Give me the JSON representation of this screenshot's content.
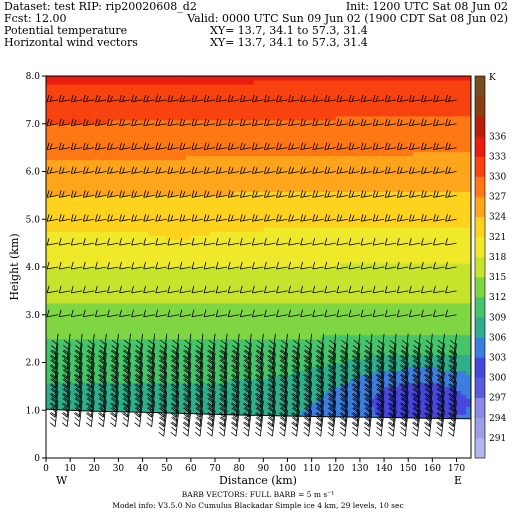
{
  "header": {
    "dataset": "Dataset: test  RIP: rip20020608_d2",
    "init": "Init: 1200 UTC Sat 08 Jun 02",
    "fcst": "Fcst:     12.00",
    "valid": "Valid: 0000 UTC Sun 09 Jun 02 (1900 CDT Sat 08 Jun 02)",
    "field1": "Potential temperature",
    "field1_xy": "XY=  13.7, 34.1 to  57.3, 31.4",
    "field2": "Horizontal wind vectors",
    "field2_xy": "XY=  13.7, 34.1 to  57.3, 31.4"
  },
  "footer": {
    "barb_line": "BARB VECTORS:  FULL BARB = 5 m s⁻¹",
    "model_line": "Model info: V3.5.0 No Cumulus Blackadar  Simple ice    4 km,  29 levels,   10 sec"
  },
  "chart_data": {
    "type": "heatmap",
    "title": "Potential temperature",
    "xlabel": "Distance (km)",
    "ylabel": "Height (km)",
    "x_ticks": [
      0,
      10,
      20,
      30,
      40,
      50,
      60,
      70,
      80,
      90,
      100,
      110,
      120,
      130,
      140,
      150,
      160,
      170
    ],
    "y_ticks": [
      "0",
      "1.0",
      "2.0",
      "3.0",
      "4.0",
      "5.0",
      "6.0",
      "7.0",
      "8.0"
    ],
    "xlim": [
      0,
      176
    ],
    "ylim": [
      0,
      8
    ],
    "endpoint_left": "W",
    "endpoint_right": "E",
    "colorbar": {
      "unit": "K",
      "levels": [
        291,
        294,
        297,
        300,
        303,
        306,
        309,
        312,
        315,
        318,
        321,
        324,
        327,
        330,
        333,
        336
      ],
      "colors": [
        "#b5b5ee",
        "#9e9ee8",
        "#8a8ae6",
        "#5b5be0",
        "#4747dd",
        "#3c7ee0",
        "#2fae8c",
        "#46c46a",
        "#7ed642",
        "#c6e42c",
        "#f0e92a",
        "#ffd21e",
        "#ffa51c",
        "#ff7815",
        "#f8420f",
        "#e81c0f",
        "#b81c0a",
        "#8a3d12",
        "#7a4a20"
      ]
    },
    "terrain_height_km": [
      [
        0,
        1.02
      ],
      [
        20,
        0.98
      ],
      [
        40,
        0.96
      ],
      [
        60,
        0.93
      ],
      [
        80,
        0.9
      ],
      [
        100,
        0.88
      ],
      [
        120,
        0.86
      ],
      [
        140,
        0.85
      ],
      [
        160,
        0.83
      ],
      [
        176,
        0.82
      ]
    ],
    "wind_barbs": {
      "x_km": [
        0,
        5,
        10,
        15,
        20,
        25,
        30,
        35,
        40,
        45,
        50,
        55,
        60,
        65,
        70,
        75,
        80,
        85,
        90,
        95,
        100,
        105,
        110,
        115,
        120,
        125,
        130,
        135,
        140,
        145,
        150,
        155,
        160,
        165,
        170
      ],
      "z_km": [
        1.0,
        1.2,
        1.4,
        1.6,
        1.8,
        2.0,
        2.2,
        2.4,
        2.6,
        3.0,
        3.5,
        4.0,
        4.5,
        5.0,
        5.5,
        6.0,
        6.5,
        7.0,
        7.5
      ],
      "note": "full barb = 5 m/s"
    }
  }
}
